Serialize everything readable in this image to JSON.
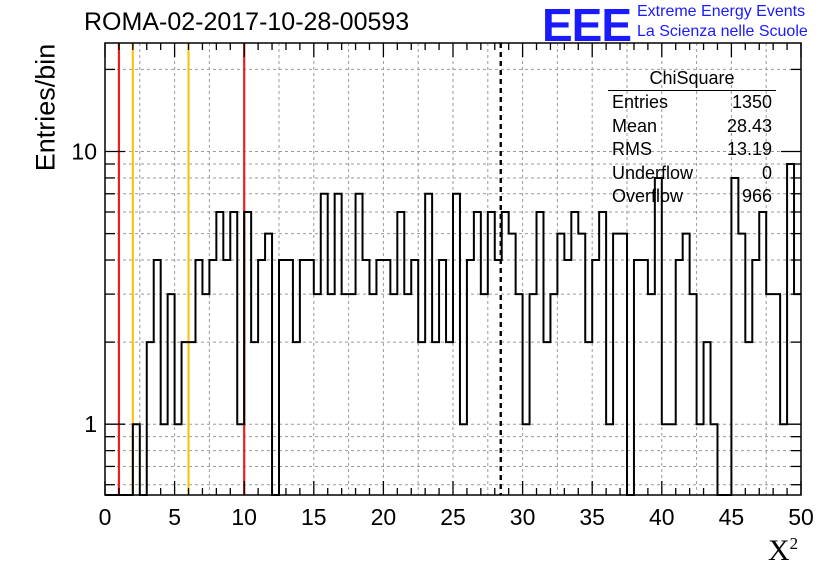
{
  "header": {
    "title": "ROMA-02-2017-10-28-00593",
    "logo": "EEE",
    "logo_line1": "Extreme Energy Events",
    "logo_line2": "La Scienza nelle Scuole"
  },
  "stats_box": {
    "title": "ChiSquare",
    "rows": [
      {
        "label": "Entries",
        "value": "1350"
      },
      {
        "label": "Mean",
        "value": "28.43"
      },
      {
        "label": "RMS",
        "value": "13.19"
      },
      {
        "label": "Underflow",
        "value": "0"
      },
      {
        "label": "Overflow",
        "value": "966"
      }
    ]
  },
  "colors": {
    "red_line": "#e8201f",
    "yellow_line": "#f5c518",
    "grid": "#9a9a9a"
  },
  "chart_data": {
    "type": "bar",
    "ylabel": "Entries/bin",
    "xlabel": "X",
    "xlabel_superscript": "2",
    "xlim": [
      0,
      50
    ],
    "ylim": [
      0.55,
      25
    ],
    "yscale": "log",
    "bin_width": 0.5,
    "grid": true,
    "x_ticks": [
      0,
      5,
      10,
      15,
      20,
      25,
      30,
      35,
      40,
      45,
      50
    ],
    "x_tick_labels": [
      "0",
      "5",
      "10",
      "15",
      "20",
      "25",
      "30",
      "35",
      "40",
      "45",
      "50"
    ],
    "y_ticks": [
      1,
      10
    ],
    "y_tick_labels": [
      "1",
      "10"
    ],
    "values": [
      0,
      0,
      0,
      0,
      1,
      0,
      2,
      4,
      1,
      3,
      1,
      2,
      2,
      4,
      3,
      4,
      6,
      4,
      6,
      1,
      6,
      2,
      4,
      5,
      0,
      4,
      4,
      2,
      4,
      4,
      3,
      7,
      3,
      7,
      3,
      3,
      7,
      4,
      3,
      4,
      4,
      3,
      6,
      3,
      4,
      2,
      7,
      2,
      4,
      2,
      7,
      1,
      4,
      6,
      3,
      6,
      4,
      6,
      5,
      3,
      1,
      3,
      6,
      2,
      3,
      5,
      4,
      6,
      5,
      2,
      4,
      6,
      1,
      5,
      5,
      0,
      4,
      4,
      3,
      8,
      1,
      1,
      4,
      5,
      3,
      1,
      2,
      1,
      0,
      0,
      8,
      5,
      2,
      4,
      6,
      3,
      3,
      1,
      9,
      3
    ],
    "vertical_lines": [
      {
        "x": 1,
        "color": "red"
      },
      {
        "x": 2,
        "color": "yellow"
      },
      {
        "x": 6,
        "color": "yellow"
      },
      {
        "x": 10,
        "color": "red"
      },
      {
        "x": 28.43,
        "color": "black",
        "style": "dashed"
      }
    ]
  }
}
